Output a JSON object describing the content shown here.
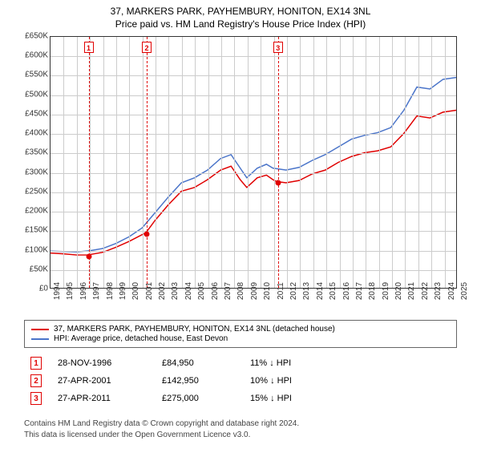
{
  "title_line1": "37, MARKERS PARK, PAYHEMBURY, HONITON, EX14 3NL",
  "title_line2": "Price paid vs. HM Land Registry's House Price Index (HPI)",
  "chart": {
    "type": "line",
    "background_color": "#ffffff",
    "grid_color": "#cccccc",
    "border_color": "#333333",
    "ylim": [
      0,
      650000
    ],
    "ytick_step": 50000,
    "yticks": [
      "£0",
      "£50K",
      "£100K",
      "£150K",
      "£200K",
      "£250K",
      "£300K",
      "£350K",
      "£400K",
      "£450K",
      "£500K",
      "£550K",
      "£600K",
      "£650K"
    ],
    "xlim": [
      1994,
      2025
    ],
    "xticks": [
      1994,
      1995,
      1996,
      1997,
      1998,
      1999,
      2000,
      2001,
      2002,
      2003,
      2004,
      2005,
      2006,
      2007,
      2008,
      2009,
      2010,
      2011,
      2012,
      2013,
      2014,
      2015,
      2016,
      2017,
      2018,
      2019,
      2020,
      2021,
      2022,
      2023,
      2024,
      2025
    ],
    "event_line_color": "#e00000",
    "event_marker_border": "#e00000",
    "series": [
      {
        "name": "red",
        "color": "#e00000",
        "width": 1.5,
        "data": [
          [
            1994,
            90000
          ],
          [
            1995,
            88000
          ],
          [
            1996,
            85000
          ],
          [
            1996.9,
            84950
          ],
          [
            1997,
            86000
          ],
          [
            1998,
            92000
          ],
          [
            1999,
            105000
          ],
          [
            2000,
            120000
          ],
          [
            2001.3,
            142950
          ],
          [
            2002,
            175000
          ],
          [
            2003,
            215000
          ],
          [
            2004,
            250000
          ],
          [
            2005,
            260000
          ],
          [
            2006,
            280000
          ],
          [
            2007,
            305000
          ],
          [
            2007.8,
            315000
          ],
          [
            2008.5,
            280000
          ],
          [
            2009,
            260000
          ],
          [
            2009.8,
            285000
          ],
          [
            2010.5,
            292000
          ],
          [
            2011,
            280000
          ],
          [
            2011.3,
            275000
          ],
          [
            2012,
            272000
          ],
          [
            2013,
            278000
          ],
          [
            2014,
            295000
          ],
          [
            2015,
            305000
          ],
          [
            2016,
            325000
          ],
          [
            2017,
            340000
          ],
          [
            2018,
            350000
          ],
          [
            2019,
            355000
          ],
          [
            2020,
            365000
          ],
          [
            2021,
            400000
          ],
          [
            2022,
            445000
          ],
          [
            2023,
            440000
          ],
          [
            2024,
            455000
          ],
          [
            2025,
            460000
          ]
        ]
      },
      {
        "name": "blue",
        "color": "#4a74c9",
        "width": 1.5,
        "data": [
          [
            1994,
            95000
          ],
          [
            1995,
            94000
          ],
          [
            1996,
            93000
          ],
          [
            1997,
            96000
          ],
          [
            1998,
            102000
          ],
          [
            1999,
            115000
          ],
          [
            2000,
            132000
          ],
          [
            2001,
            155000
          ],
          [
            2002,
            195000
          ],
          [
            2003,
            235000
          ],
          [
            2004,
            272000
          ],
          [
            2005,
            285000
          ],
          [
            2006,
            305000
          ],
          [
            2007,
            335000
          ],
          [
            2007.8,
            345000
          ],
          [
            2008.5,
            310000
          ],
          [
            2009,
            285000
          ],
          [
            2009.8,
            310000
          ],
          [
            2010.5,
            320000
          ],
          [
            2011,
            310000
          ],
          [
            2012,
            305000
          ],
          [
            2013,
            312000
          ],
          [
            2014,
            330000
          ],
          [
            2015,
            345000
          ],
          [
            2016,
            365000
          ],
          [
            2017,
            385000
          ],
          [
            2018,
            395000
          ],
          [
            2019,
            402000
          ],
          [
            2020,
            415000
          ],
          [
            2021,
            460000
          ],
          [
            2022,
            520000
          ],
          [
            2023,
            515000
          ],
          [
            2024,
            540000
          ],
          [
            2025,
            545000
          ]
        ]
      }
    ],
    "markers": [
      {
        "label": "1",
        "x": 1996.9,
        "y": 84950
      },
      {
        "label": "2",
        "x": 2001.32,
        "y": 142950
      },
      {
        "label": "3",
        "x": 2011.32,
        "y": 275000
      }
    ],
    "dot_color": "#e00000",
    "dot_radius": 3.5
  },
  "legend": {
    "border_color": "#666666",
    "items": [
      {
        "color": "#e00000",
        "label": "37, MARKERS PARK, PAYHEMBURY, HONITON, EX14 3NL (detached house)"
      },
      {
        "color": "#4a74c9",
        "label": "HPI: Average price, detached house, East Devon"
      }
    ]
  },
  "events": [
    {
      "num": "1",
      "date": "28-NOV-1996",
      "price": "£84,950",
      "pct": "11% ↓ HPI"
    },
    {
      "num": "2",
      "date": "27-APR-2001",
      "price": "£142,950",
      "pct": "10% ↓ HPI"
    },
    {
      "num": "3",
      "date": "27-APR-2011",
      "price": "£275,000",
      "pct": "15% ↓ HPI"
    }
  ],
  "footer_line1": "Contains HM Land Registry data © Crown copyright and database right 2024.",
  "footer_line2": "This data is licensed under the Open Government Licence v3.0."
}
